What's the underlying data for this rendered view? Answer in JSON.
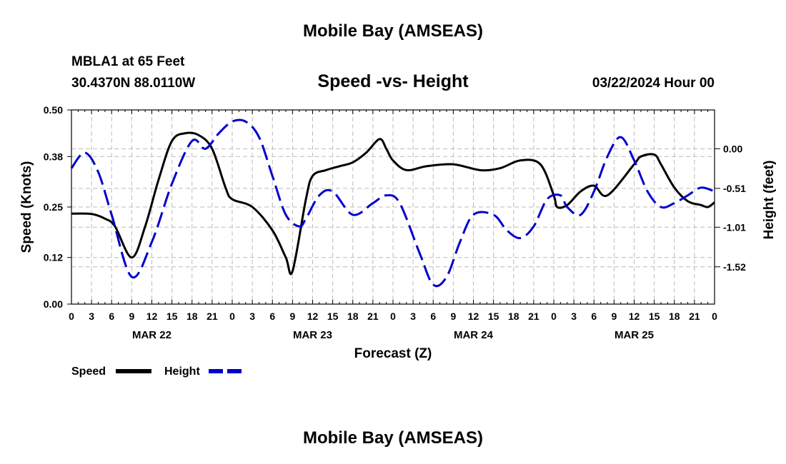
{
  "header": {
    "main_title": "Mobile Bay (AMSEAS)",
    "station": "MBLA1 at 65 Feet",
    "coords": "30.4370N  88.0110W",
    "chart_title": "Speed -vs- Height",
    "date": "03/22/2024 Hour 00"
  },
  "footer": {
    "title": "Mobile Bay (AMSEAS)"
  },
  "chart_data": {
    "type": "line",
    "title": "Speed -vs- Height",
    "xlabel": "Forecast (Z)",
    "ylabel": "Speed (Knots)",
    "y2label": "Height (feet)",
    "xlim": [
      0,
      96
    ],
    "ylim": [
      0,
      0.5
    ],
    "y2lim": [
      -2.0,
      0.5
    ],
    "x_tick_labels": [
      "0",
      "3",
      "6",
      "9",
      "12",
      "15",
      "18",
      "21",
      "0",
      "3",
      "6",
      "9",
      "12",
      "15",
      "18",
      "21",
      "0",
      "3",
      "6",
      "9",
      "12",
      "15",
      "18",
      "21",
      "0",
      "3",
      "6",
      "9",
      "12",
      "15",
      "18",
      "21",
      "0"
    ],
    "day_labels": [
      {
        "label": "MAR 22",
        "x": 12
      },
      {
        "label": "MAR 23",
        "x": 36
      },
      {
        "label": "MAR 24",
        "x": 60
      },
      {
        "label": "MAR 25",
        "x": 84
      }
    ],
    "y_ticks": [
      0.0,
      0.12,
      0.25,
      0.38,
      0.5
    ],
    "y_tick_labels": [
      "0.00",
      "0.12",
      "0.25",
      "0.38",
      "0.50"
    ],
    "y2_ticks": [
      0.0,
      -0.51,
      -1.01,
      -1.52
    ],
    "y2_tick_labels": [
      "0.00",
      "-0.51",
      "-1.01",
      "-1.52"
    ],
    "grid": true,
    "legend_position": "bottom-left",
    "series": [
      {
        "name": "Speed",
        "axis": "left",
        "color": "#000000",
        "style": "solid",
        "x": [
          0,
          3,
          5,
          6.5,
          9,
          11,
          13,
          15,
          17,
          19,
          21,
          23,
          24,
          27,
          30,
          32,
          33,
          35,
          36,
          38,
          40,
          42,
          44,
          46,
          47,
          48,
          50,
          53,
          57,
          61,
          64,
          67,
          70,
          72,
          72.5,
          74,
          76,
          78,
          80,
          84,
          85,
          87,
          88,
          90,
          92,
          94,
          95,
          96
        ],
        "y": [
          0.233,
          0.232,
          0.22,
          0.2,
          0.12,
          0.2,
          0.32,
          0.42,
          0.44,
          0.435,
          0.4,
          0.3,
          0.27,
          0.25,
          0.19,
          0.12,
          0.085,
          0.27,
          0.33,
          0.345,
          0.355,
          0.365,
          0.39,
          0.425,
          0.4,
          0.37,
          0.345,
          0.355,
          0.36,
          0.345,
          0.35,
          0.37,
          0.36,
          0.28,
          0.25,
          0.255,
          0.29,
          0.305,
          0.28,
          0.36,
          0.38,
          0.385,
          0.36,
          0.3,
          0.265,
          0.255,
          0.25,
          0.262
        ]
      },
      {
        "name": "Height",
        "axis": "right",
        "color": "#0000cc",
        "style": "dashed",
        "x": [
          0,
          2,
          4,
          6,
          9,
          12,
          15,
          18,
          20,
          22,
          24,
          26,
          28,
          30,
          32,
          34,
          35,
          37,
          39,
          42,
          45,
          47,
          49,
          52,
          54,
          56,
          58,
          60,
          63,
          65,
          67,
          69,
          71,
          73,
          74,
          76,
          78,
          80,
          82,
          84,
          86,
          88,
          90,
          92,
          94,
          96
        ],
        "y": [
          -0.25,
          -0.05,
          -0.3,
          -0.85,
          -1.65,
          -1.2,
          -0.45,
          0.1,
          0.0,
          0.2,
          0.35,
          0.35,
          0.15,
          -0.35,
          -0.85,
          -1.0,
          -0.9,
          -0.6,
          -0.55,
          -0.85,
          -0.7,
          -0.6,
          -0.7,
          -1.35,
          -1.75,
          -1.65,
          -1.2,
          -0.85,
          -0.85,
          -1.05,
          -1.15,
          -1.0,
          -0.65,
          -0.6,
          -0.75,
          -0.85,
          -0.55,
          -0.1,
          0.15,
          -0.15,
          -0.55,
          -0.75,
          -0.7,
          -0.6,
          -0.5,
          -0.55
        ]
      }
    ]
  }
}
